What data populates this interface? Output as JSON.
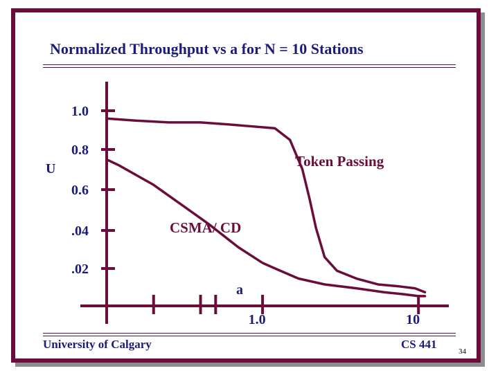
{
  "slide": {
    "title": "Normalized Throughput vs a for N = 10 Stations",
    "footer_left": "University of Calgary",
    "footer_right": "CS 441",
    "page_number": "34"
  },
  "colors": {
    "frame": "#6b0d3b",
    "text": "#1b1b7a",
    "curve": "#6b0d3b",
    "shadow": "#8d8d8d"
  },
  "chart_data": {
    "type": "line",
    "title": "Normalized Throughput vs a for N = 10 Stations",
    "xlabel": "a",
    "ylabel": "U",
    "y_tick_labels": [
      "1.0",
      "0.8",
      "0.6",
      ".04",
      ".02"
    ],
    "x_tick_labels": [
      "1.0",
      "10"
    ],
    "x_scale": "log",
    "xlim": [
      0.1,
      12
    ],
    "ylim": [
      0,
      1.0
    ],
    "grid": false,
    "series": [
      {
        "name": "Token Passing",
        "x": [
          0.1,
          0.15,
          0.25,
          0.4,
          0.6,
          0.85,
          1.2,
          1.5,
          1.8,
          2.0,
          2.2,
          2.5,
          3.0,
          4.0,
          5.5,
          7.5,
          9.5,
          11.0
        ],
        "y": [
          0.96,
          0.95,
          0.94,
          0.94,
          0.93,
          0.92,
          0.91,
          0.85,
          0.7,
          0.55,
          0.4,
          0.25,
          0.18,
          0.14,
          0.11,
          0.1,
          0.09,
          0.07
        ]
      },
      {
        "name": "CSMA/ CD",
        "x": [
          0.1,
          0.12,
          0.2,
          0.3,
          0.45,
          0.7,
          1.0,
          1.3,
          1.7,
          2.5,
          4.0,
          6.0,
          8.0,
          10.0,
          11.0
        ],
        "y": [
          0.75,
          0.72,
          0.62,
          0.52,
          0.42,
          0.3,
          0.22,
          0.18,
          0.14,
          0.11,
          0.09,
          0.07,
          0.06,
          0.05,
          0.05
        ]
      }
    ]
  }
}
